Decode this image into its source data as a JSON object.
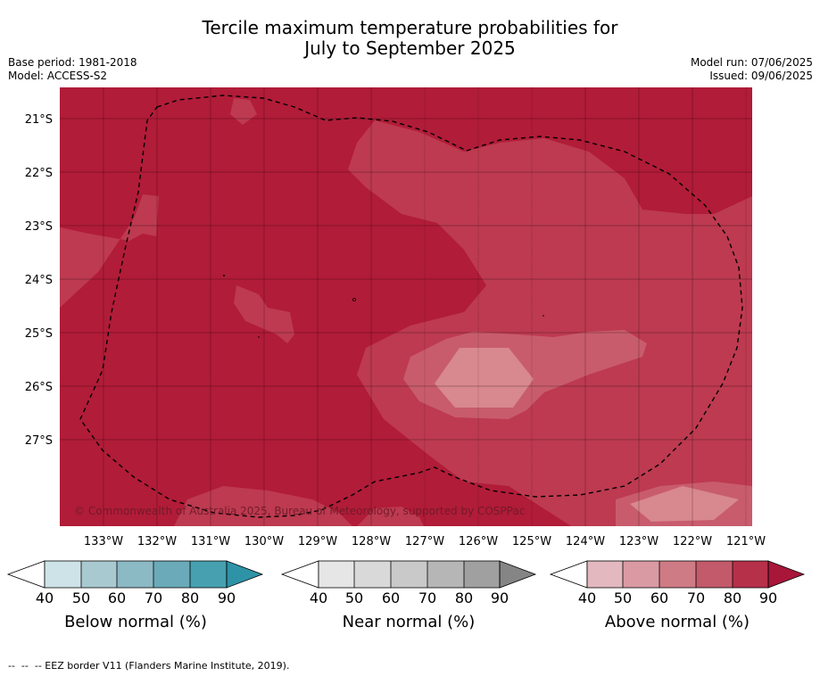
{
  "header": {
    "title_line1": "Tercile maximum temperature probabilities for",
    "title_line2": "July to September 2025",
    "base_period": "Base period: 1981-2018",
    "model": "Model: ACCESS-S2",
    "model_run": "Model run: 07/06/2025",
    "issued": "Issued: 09/06/2025"
  },
  "map": {
    "lat_labels": [
      "21°S",
      "22°S",
      "23°S",
      "24°S",
      "25°S",
      "26°S",
      "27°S"
    ],
    "lon_labels": [
      "133°W",
      "132°W",
      "131°W",
      "130°W",
      "129°W",
      "128°W",
      "127°W",
      "126°W",
      "125°W",
      "124°W",
      "123°W",
      "122°W",
      "121°W"
    ],
    "copyright": "© Commonwealth of Australia 2025, Bureau of Meteorology, supported by COSPPac",
    "colors": {
      "above_80": "#b11c38",
      "above_70": "#bd3a50",
      "above_60": "#c85c6c",
      "above_50": "#d79aa4"
    }
  },
  "legends": [
    {
      "label": "Below normal (%)",
      "ticks": [
        "40",
        "50",
        "60",
        "70",
        "80",
        "90"
      ],
      "colors": [
        "#cde3e8",
        "#a9c9d0",
        "#8bb9c4",
        "#6aaab9",
        "#46a0b0",
        "#2e93a6"
      ]
    },
    {
      "label": "Near normal (%)",
      "ticks": [
        "40",
        "50",
        "60",
        "70",
        "80",
        "90"
      ],
      "colors": [
        "#e6e6e6",
        "#d9d9d9",
        "#c9c9c9",
        "#b6b6b6",
        "#a0a0a0",
        "#858585"
      ]
    },
    {
      "label": "Above normal (%)",
      "ticks": [
        "40",
        "50",
        "60",
        "70",
        "80",
        "90"
      ],
      "colors": [
        "#e3b8bf",
        "#d99aa3",
        "#cf7b86",
        "#c25a6b",
        "#b6304a",
        "#a8163a"
      ]
    }
  ],
  "footer": {
    "note": "--  --  -- EEZ border V11 (Flanders Marine Institute, 2019)."
  }
}
